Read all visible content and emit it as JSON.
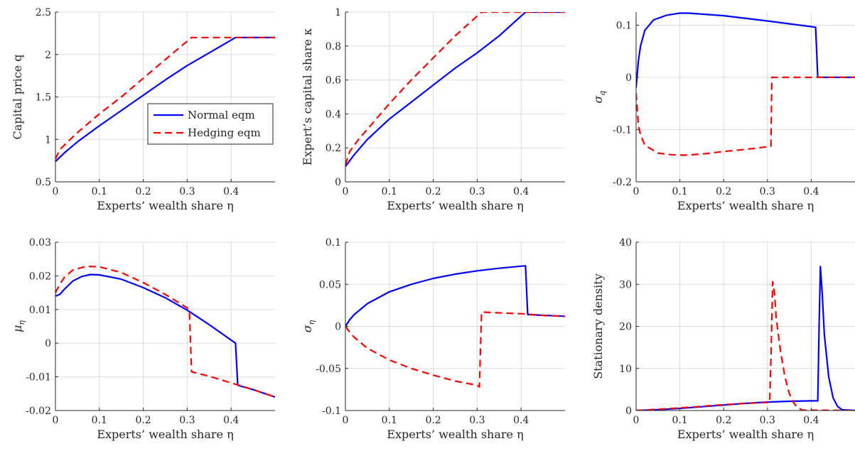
{
  "colors": {
    "normal": "#0000ff",
    "hedging": "#ff0000"
  },
  "legend": {
    "placement": "center-right",
    "panel": 0,
    "entries": [
      "Normal eqm",
      "Hedging eqm"
    ]
  },
  "chart_data": [
    {
      "type": "line",
      "xlabel": "Experts’ wealth share η",
      "ylabel": "Capital price q",
      "xlim": [
        0,
        0.5
      ],
      "ylim": [
        0.5,
        2.5
      ],
      "xticks": [
        0,
        0.1,
        0.2,
        0.3,
        0.4
      ],
      "yticks": [
        0.5,
        1,
        1.5,
        2,
        2.5
      ],
      "ytick_labels": [
        "0.5",
        "1",
        "1.5",
        "2",
        "2.5"
      ],
      "grid": true,
      "series": [
        {
          "name": "Normal eqm",
          "style": "solid",
          "x": [
            0,
            0.02,
            0.05,
            0.1,
            0.15,
            0.2,
            0.25,
            0.3,
            0.35,
            0.41,
            0.5
          ],
          "y": [
            0.74,
            0.84,
            0.97,
            1.16,
            1.34,
            1.52,
            1.7,
            1.87,
            2.02,
            2.2,
            2.2
          ]
        },
        {
          "name": "Hedging eqm",
          "style": "dashed",
          "x": [
            0,
            0.01,
            0.03,
            0.05,
            0.1,
            0.15,
            0.2,
            0.25,
            0.31,
            0.5
          ],
          "y": [
            0.77,
            0.88,
            0.98,
            1.08,
            1.3,
            1.5,
            1.72,
            1.94,
            2.2,
            2.2
          ]
        }
      ]
    },
    {
      "type": "line",
      "xlabel": "Experts’ wealth share η",
      "ylabel": "Expert’s capital share κ",
      "xlim": [
        0,
        0.5
      ],
      "ylim": [
        0,
        1
      ],
      "xticks": [
        0,
        0.1,
        0.2,
        0.3,
        0.4
      ],
      "yticks": [
        0,
        0.2,
        0.4,
        0.6,
        0.8,
        1
      ],
      "ytick_labels": [
        "0",
        "0.2",
        "0.4",
        "0.6",
        "0.8",
        "1"
      ],
      "grid": true,
      "series": [
        {
          "name": "Normal eqm",
          "style": "solid",
          "x": [
            0,
            0.02,
            0.05,
            0.1,
            0.15,
            0.2,
            0.25,
            0.3,
            0.35,
            0.41,
            0.5
          ],
          "y": [
            0.09,
            0.16,
            0.25,
            0.37,
            0.47,
            0.57,
            0.67,
            0.76,
            0.86,
            1.0,
            1.0
          ]
        },
        {
          "name": "Hedging eqm",
          "style": "dashed",
          "x": [
            0,
            0.01,
            0.03,
            0.05,
            0.1,
            0.15,
            0.2,
            0.25,
            0.31,
            0.5
          ],
          "y": [
            0.1,
            0.18,
            0.25,
            0.31,
            0.46,
            0.6,
            0.73,
            0.86,
            1.0,
            1.0
          ]
        }
      ]
    },
    {
      "type": "line",
      "xlabel": "Experts’ wealth share η",
      "ylabel": "σ_q",
      "ylabel_main": "σ",
      "ylabel_sub": "q",
      "xlim": [
        0,
        0.5
      ],
      "ylim": [
        -0.2,
        0.125
      ],
      "xticks": [
        0,
        0.1,
        0.2,
        0.3,
        0.4
      ],
      "yticks": [
        -0.2,
        -0.1,
        0,
        0.1
      ],
      "ytick_labels": [
        "-0.2",
        "-0.1",
        "0",
        "0.1"
      ],
      "grid": true,
      "series": [
        {
          "name": "Normal eqm",
          "style": "solid",
          "x": [
            0,
            0.005,
            0.01,
            0.02,
            0.04,
            0.07,
            0.1,
            0.12,
            0.2,
            0.3,
            0.41,
            0.415,
            0.5
          ],
          "y": [
            -0.02,
            0.03,
            0.06,
            0.09,
            0.11,
            0.119,
            0.123,
            0.123,
            0.118,
            0.108,
            0.096,
            0.0,
            0.0
          ]
        },
        {
          "name": "Hedging eqm",
          "style": "dashed",
          "x": [
            0,
            0.005,
            0.01,
            0.02,
            0.05,
            0.08,
            0.11,
            0.15,
            0.2,
            0.25,
            0.308,
            0.31,
            0.5
          ],
          "y": [
            -0.03,
            -0.09,
            -0.11,
            -0.13,
            -0.145,
            -0.148,
            -0.149,
            -0.147,
            -0.142,
            -0.138,
            -0.132,
            0.0,
            0.0
          ]
        }
      ]
    },
    {
      "type": "line",
      "xlabel": "Experts’ wealth share η",
      "ylabel": "μ_η",
      "ylabel_main": "μ",
      "ylabel_sub": "η",
      "xlim": [
        0,
        0.5
      ],
      "ylim": [
        -0.02,
        0.03
      ],
      "xticks": [
        0,
        0.1,
        0.2,
        0.3,
        0.4
      ],
      "yticks": [
        -0.02,
        -0.01,
        0,
        0.01,
        0.02,
        0.03
      ],
      "ytick_labels": [
        "-0.02",
        "-0.01",
        "0",
        "0.01",
        "0.02",
        "0.03"
      ],
      "grid": true,
      "series": [
        {
          "name": "Normal eqm",
          "style": "solid",
          "x": [
            0,
            0.01,
            0.02,
            0.04,
            0.06,
            0.08,
            0.1,
            0.15,
            0.2,
            0.25,
            0.3,
            0.35,
            0.41,
            0.415,
            0.45,
            0.5
          ],
          "y": [
            0.014,
            0.0145,
            0.016,
            0.0185,
            0.0198,
            0.0204,
            0.0203,
            0.019,
            0.0165,
            0.0135,
            0.0098,
            0.0055,
            0.0,
            -0.0125,
            -0.0138,
            -0.016
          ]
        },
        {
          "name": "Hedging eqm",
          "style": "dashed",
          "x": [
            0,
            0.01,
            0.02,
            0.04,
            0.07,
            0.1,
            0.15,
            0.2,
            0.25,
            0.3,
            0.305,
            0.31,
            0.35,
            0.4,
            0.45,
            0.5
          ],
          "y": [
            0.015,
            0.0175,
            0.0195,
            0.0218,
            0.0228,
            0.0227,
            0.021,
            0.018,
            0.0145,
            0.0105,
            0.0095,
            -0.0085,
            -0.0098,
            -0.0118,
            -0.0138,
            -0.016
          ]
        }
      ]
    },
    {
      "type": "line",
      "xlabel": "Experts’ wealth share η",
      "ylabel": "σ_η",
      "ylabel_main": "σ",
      "ylabel_sub": "η",
      "xlim": [
        0,
        0.5
      ],
      "ylim": [
        -0.1,
        0.1
      ],
      "xticks": [
        0,
        0.1,
        0.2,
        0.3,
        0.4
      ],
      "yticks": [
        -0.1,
        -0.05,
        0,
        0.05,
        0.1
      ],
      "ytick_labels": [
        "-0.1",
        "-0.05",
        "0",
        "0.05",
        "0.1"
      ],
      "grid": true,
      "series": [
        {
          "name": "Normal eqm",
          "style": "solid",
          "x": [
            0,
            0.01,
            0.02,
            0.05,
            0.1,
            0.15,
            0.2,
            0.25,
            0.3,
            0.35,
            0.41,
            0.415,
            0.5
          ],
          "y": [
            0.0,
            0.008,
            0.014,
            0.027,
            0.041,
            0.05,
            0.057,
            0.062,
            0.066,
            0.069,
            0.072,
            0.014,
            0.012
          ]
        },
        {
          "name": "Hedging eqm",
          "style": "dashed",
          "x": [
            0,
            0.01,
            0.02,
            0.05,
            0.1,
            0.15,
            0.2,
            0.25,
            0.3,
            0.305,
            0.31,
            0.35,
            0.4,
            0.45,
            0.5
          ],
          "y": [
            0.0,
            -0.007,
            -0.013,
            -0.026,
            -0.04,
            -0.05,
            -0.058,
            -0.065,
            -0.07,
            -0.072,
            0.017,
            0.016,
            0.015,
            0.013,
            0.012
          ]
        }
      ]
    },
    {
      "type": "line",
      "xlabel": "Experts’ wealth share η",
      "ylabel": "Stationary density",
      "xlim": [
        0,
        0.5
      ],
      "ylim": [
        0,
        40
      ],
      "xticks": [
        0,
        0.1,
        0.2,
        0.3,
        0.4
      ],
      "yticks": [
        0,
        10,
        20,
        30,
        40
      ],
      "ytick_labels": [
        "0",
        "10",
        "20",
        "30",
        "40"
      ],
      "grid": true,
      "series": [
        {
          "name": "Normal eqm",
          "style": "solid",
          "x": [
            0,
            0.05,
            0.1,
            0.15,
            0.2,
            0.25,
            0.3,
            0.35,
            0.4,
            0.41,
            0.415,
            0.418,
            0.421,
            0.425,
            0.43,
            0.44,
            0.45,
            0.46,
            0.47,
            0.5
          ],
          "y": [
            0.0,
            0.2,
            0.5,
            0.9,
            1.3,
            1.7,
            2.0,
            2.2,
            2.3,
            2.3,
            2.3,
            20,
            34.2,
            28,
            18,
            8,
            3,
            1,
            0.2,
            0.0
          ]
        },
        {
          "name": "Hedging eqm",
          "style": "dashed",
          "x": [
            0,
            0.05,
            0.1,
            0.15,
            0.2,
            0.25,
            0.3,
            0.305,
            0.308,
            0.312,
            0.316,
            0.32,
            0.33,
            0.34,
            0.35,
            0.36,
            0.37,
            0.38,
            0.5
          ],
          "y": [
            0.0,
            0.3,
            0.6,
            1.0,
            1.4,
            1.7,
            1.9,
            1.9,
            12,
            30.6,
            28,
            22,
            14,
            8,
            4,
            1.8,
            0.6,
            0.1,
            0.0
          ]
        }
      ]
    }
  ]
}
